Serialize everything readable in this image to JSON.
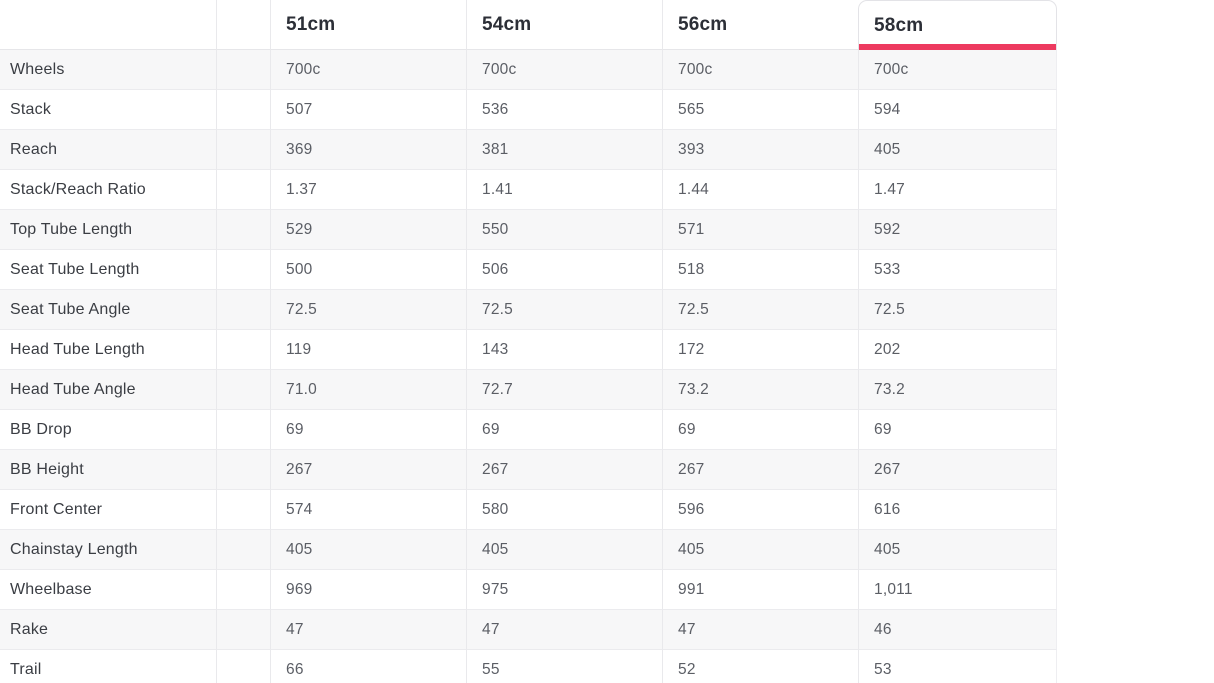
{
  "table": {
    "accent_color": "#ED3A5F",
    "columns": [
      "51cm",
      "54cm",
      "56cm",
      "58cm"
    ],
    "selected_column": "58cm",
    "rows": [
      {
        "label": "Wheels",
        "values": [
          "700c",
          "700c",
          "700c",
          "700c"
        ]
      },
      {
        "label": "Stack",
        "values": [
          "507",
          "536",
          "565",
          "594"
        ]
      },
      {
        "label": "Reach",
        "values": [
          "369",
          "381",
          "393",
          "405"
        ]
      },
      {
        "label": "Stack/Reach Ratio",
        "values": [
          "1.37",
          "1.41",
          "1.44",
          "1.47"
        ]
      },
      {
        "label": "Top Tube Length",
        "values": [
          "529",
          "550",
          "571",
          "592"
        ]
      },
      {
        "label": "Seat Tube Length",
        "values": [
          "500",
          "506",
          "518",
          "533"
        ]
      },
      {
        "label": "Seat Tube Angle",
        "values": [
          "72.5",
          "72.5",
          "72.5",
          "72.5"
        ]
      },
      {
        "label": "Head Tube Length",
        "values": [
          "119",
          "143",
          "172",
          "202"
        ]
      },
      {
        "label": "Head Tube Angle",
        "values": [
          "71.0",
          "72.7",
          "73.2",
          "73.2"
        ]
      },
      {
        "label": "BB Drop",
        "values": [
          "69",
          "69",
          "69",
          "69"
        ]
      },
      {
        "label": "BB Height",
        "values": [
          "267",
          "267",
          "267",
          "267"
        ]
      },
      {
        "label": "Front Center",
        "values": [
          "574",
          "580",
          "596",
          "616"
        ]
      },
      {
        "label": "Chainstay Length",
        "values": [
          "405",
          "405",
          "405",
          "405"
        ]
      },
      {
        "label": "Wheelbase",
        "values": [
          "969",
          "975",
          "991",
          "1,011"
        ]
      },
      {
        "label": "Rake",
        "values": [
          "47",
          "47",
          "47",
          "46"
        ]
      },
      {
        "label": "Trail",
        "values": [
          "66",
          "55",
          "52",
          "53"
        ]
      }
    ]
  }
}
